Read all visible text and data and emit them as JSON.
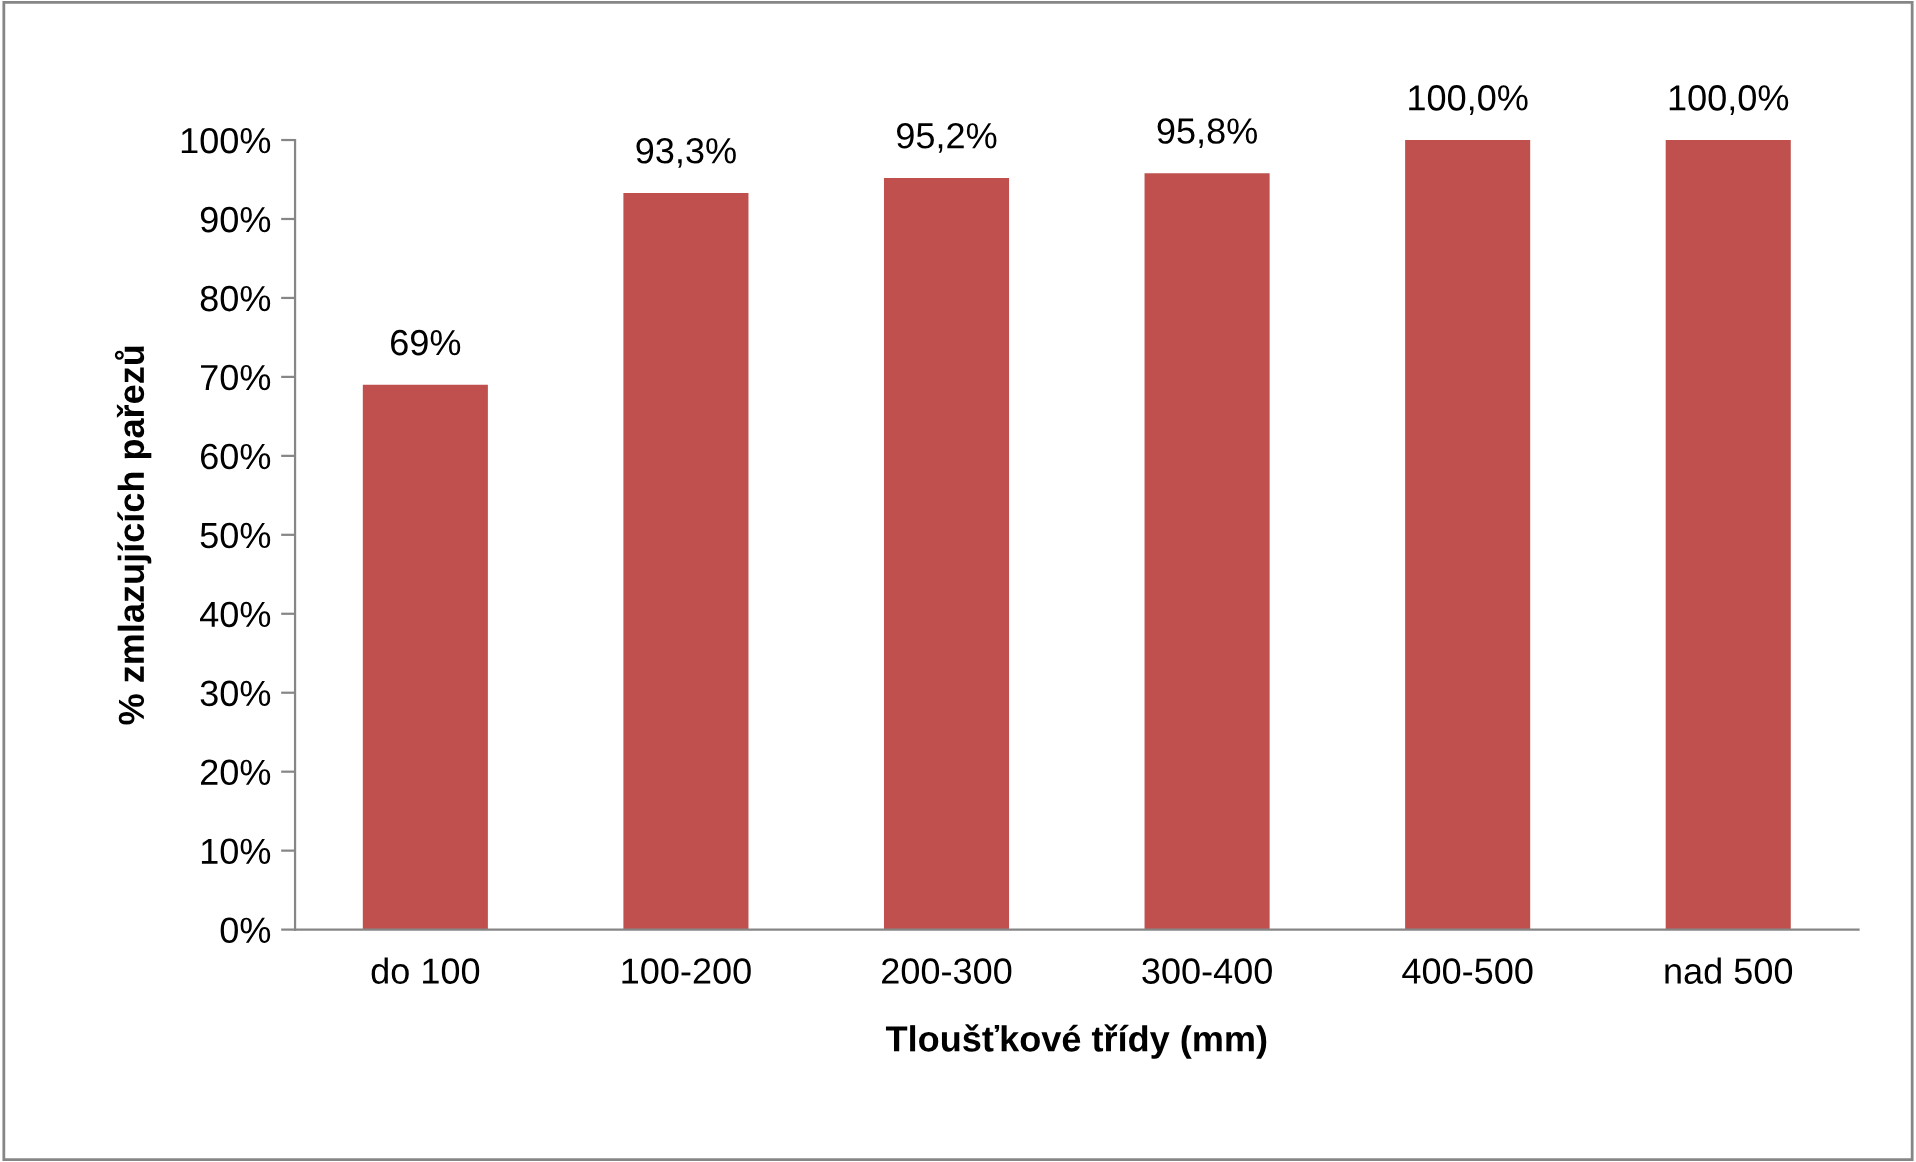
{
  "chart_data": {
    "type": "bar",
    "xlabel": "Tloušťkové třídy (mm)",
    "ylabel": "% zmlazujících pařezů",
    "categories": [
      "do 100",
      "100-200",
      "200-300",
      "300-400",
      "400-500",
      "nad 500"
    ],
    "values": [
      69,
      93.3,
      95.2,
      95.8,
      100,
      100
    ],
    "value_labels": [
      "69%",
      "93,3%",
      "95,2%",
      "95,8%",
      "100,0%",
      "100,0%"
    ],
    "color": "#c0504d",
    "ylim": [
      0,
      100
    ],
    "yticks": [
      {
        "value": 0,
        "label": "0%"
      },
      {
        "value": 10,
        "label": "10%"
      },
      {
        "value": 20,
        "label": "20%"
      },
      {
        "value": 30,
        "label": "30%"
      },
      {
        "value": 40,
        "label": "40%"
      },
      {
        "value": 50,
        "label": "50%"
      },
      {
        "value": 60,
        "label": "60%"
      },
      {
        "value": 70,
        "label": "70%"
      },
      {
        "value": 80,
        "label": "80%"
      },
      {
        "value": 90,
        "label": "90%"
      },
      {
        "value": 100,
        "label": "100%"
      }
    ],
    "grid": false,
    "legend": false
  }
}
